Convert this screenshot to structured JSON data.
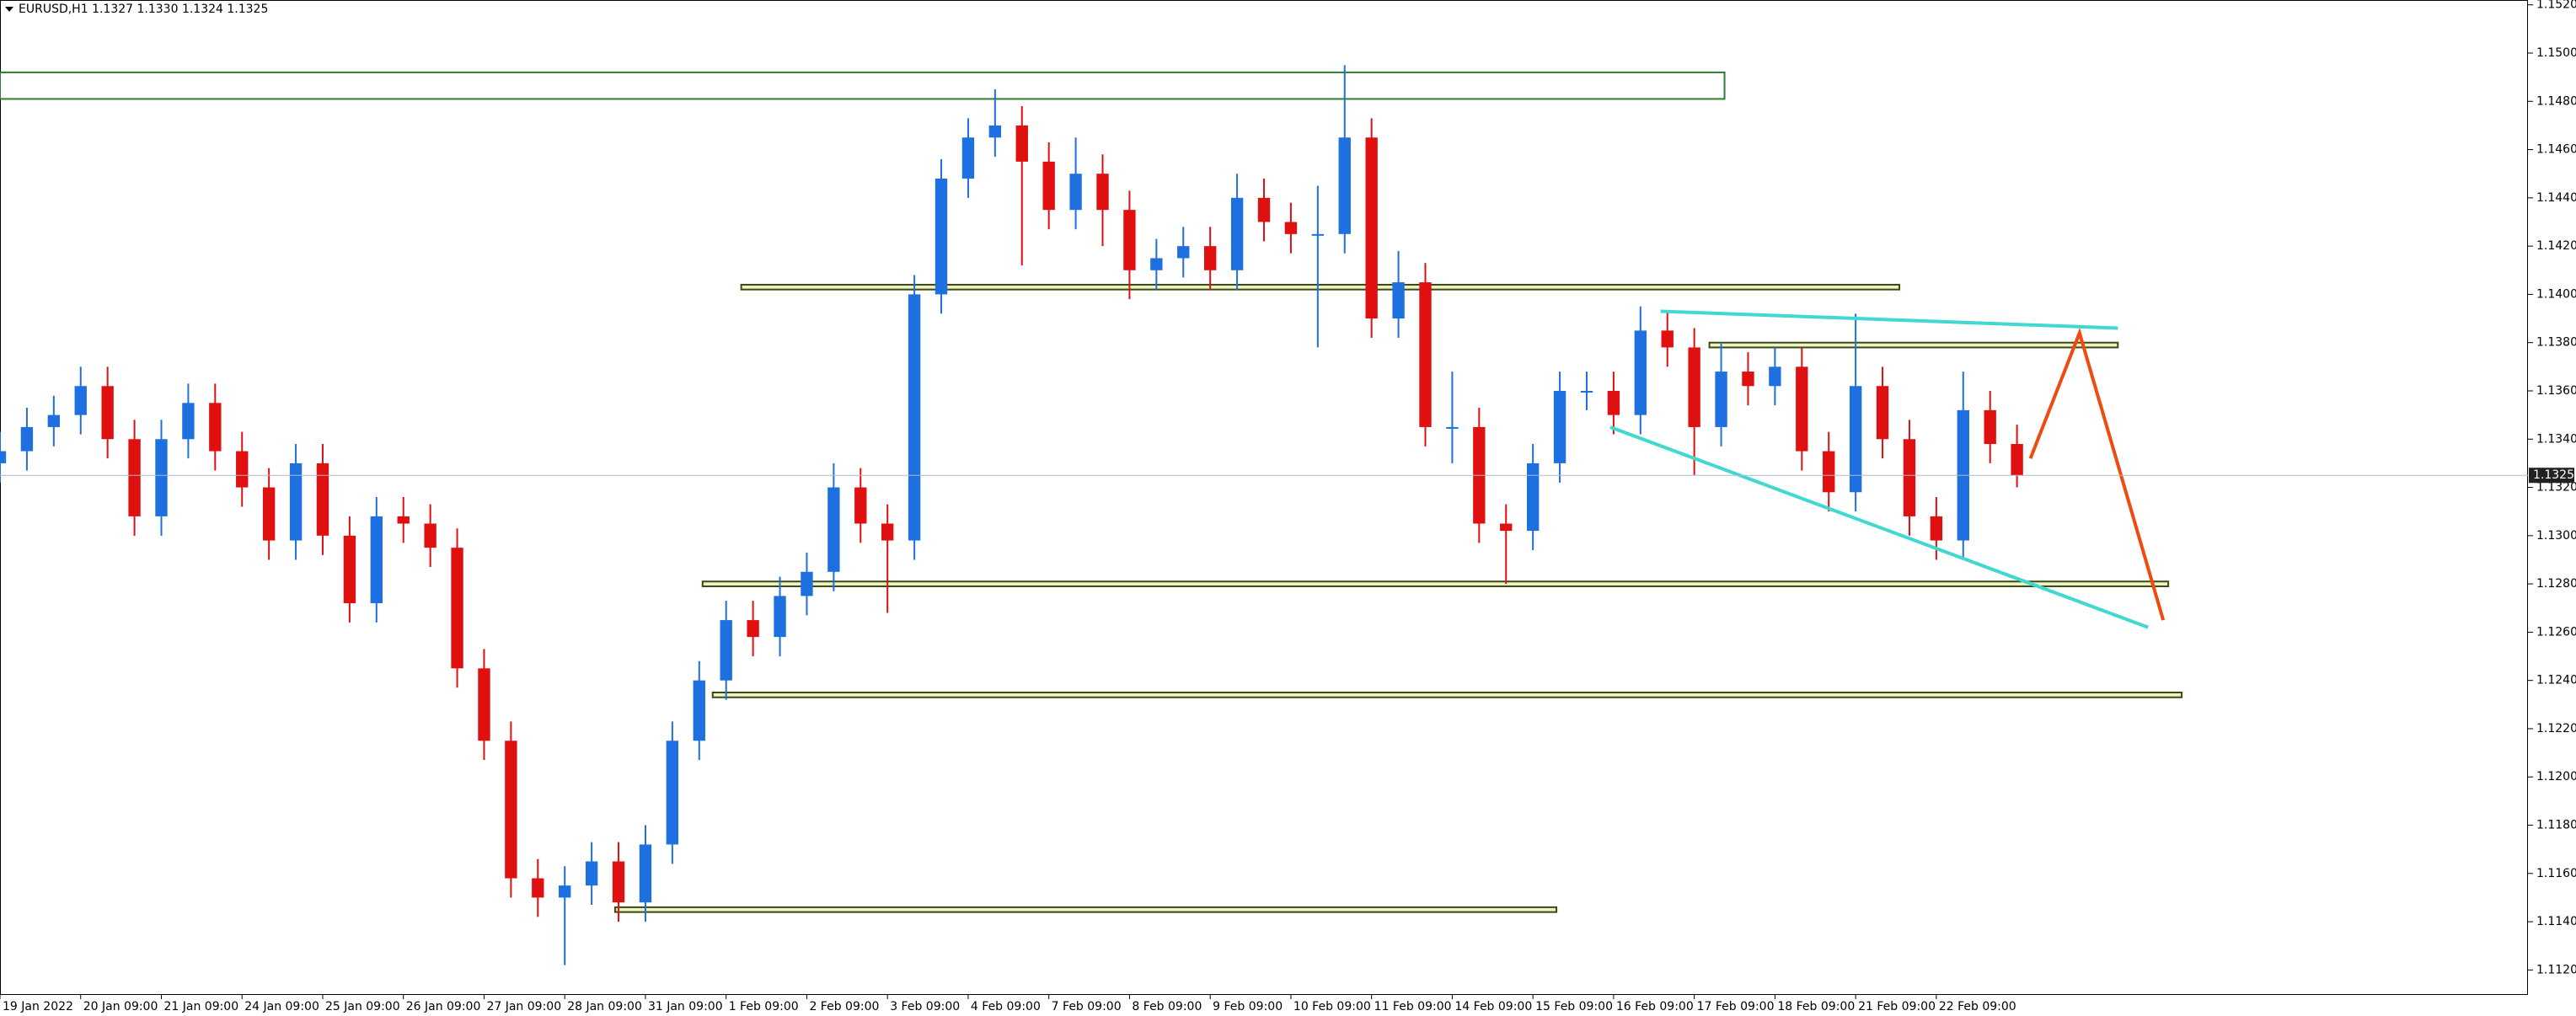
{
  "chart_data": {
    "type": "candlestick",
    "symbol_info": "EURUSD,H1  1.1327 1.1330 1.1324 1.1325",
    "up_color": "#1e6fe0",
    "down_color": "#e01010",
    "xlim": [
      0,
      752
    ],
    "ylim": [
      1.111,
      1.1522
    ],
    "xticks": [
      {
        "value": 0,
        "label": "19 Jan 2022"
      },
      {
        "value": 24,
        "label": "20 Jan 09:00"
      },
      {
        "value": 48,
        "label": "21 Jan 09:00"
      },
      {
        "value": 72,
        "label": "24 Jan 09:00"
      },
      {
        "value": 96,
        "label": "25 Jan 09:00"
      },
      {
        "value": 120,
        "label": "26 Jan 09:00"
      },
      {
        "value": 144,
        "label": "27 Jan 09:00"
      },
      {
        "value": 168,
        "label": "28 Jan 09:00"
      },
      {
        "value": 192,
        "label": "31 Jan 09:00"
      },
      {
        "value": 216,
        "label": "1 Feb 09:00"
      },
      {
        "value": 240,
        "label": "2 Feb 09:00"
      },
      {
        "value": 264,
        "label": "3 Feb 09:00"
      },
      {
        "value": 288,
        "label": "4 Feb 09:00"
      },
      {
        "value": 312,
        "label": "7 Feb 09:00"
      },
      {
        "value": 336,
        "label": "8 Feb 09:00"
      },
      {
        "value": 360,
        "label": "9 Feb 09:00"
      },
      {
        "value": 384,
        "label": "10 Feb 09:00"
      },
      {
        "value": 408,
        "label": "11 Feb 09:00"
      },
      {
        "value": 432,
        "label": "14 Feb 09:00"
      },
      {
        "value": 456,
        "label": "15 Feb 09:00"
      },
      {
        "value": 480,
        "label": "16 Feb 09:00"
      },
      {
        "value": 504,
        "label": "17 Feb 09:00"
      },
      {
        "value": 528,
        "label": "18 Feb 09:00"
      },
      {
        "value": 552,
        "label": "21 Feb 09:00"
      },
      {
        "value": 576,
        "label": "22 Feb 09:00"
      }
    ],
    "yticks": [
      {
        "value": 1.152,
        "label": "1.1520"
      },
      {
        "value": 1.15,
        "label": "1.1500"
      },
      {
        "value": 1.148,
        "label": "1.1480"
      },
      {
        "value": 1.146,
        "label": "1.1460"
      },
      {
        "value": 1.144,
        "label": "1.1440"
      },
      {
        "value": 1.142,
        "label": "1.1420"
      },
      {
        "value": 1.14,
        "label": "1.1400"
      },
      {
        "value": 1.138,
        "label": "1.1380"
      },
      {
        "value": 1.136,
        "label": "1.1360"
      },
      {
        "value": 1.134,
        "label": "1.1340"
      },
      {
        "value": 1.132,
        "label": "1.1320"
      },
      {
        "value": 1.13,
        "label": "1.1300"
      },
      {
        "value": 1.128,
        "label": "1.1280"
      },
      {
        "value": 1.126,
        "label": "1.1260"
      },
      {
        "value": 1.124,
        "label": "1.1240"
      },
      {
        "value": 1.122,
        "label": "1.1220"
      },
      {
        "value": 1.12,
        "label": "1.1200"
      },
      {
        "value": 1.118,
        "label": "1.1180"
      },
      {
        "value": 1.116,
        "label": "1.1160"
      },
      {
        "value": 1.114,
        "label": "1.1140"
      },
      {
        "value": 1.112,
        "label": "1.1120"
      }
    ],
    "last_price": {
      "value": 1.1325,
      "label": "1.1325"
    },
    "x": [
      0,
      8,
      16,
      24,
      32,
      40,
      48,
      56,
      64,
      72,
      80,
      88,
      96,
      104,
      112,
      120,
      128,
      136,
      144,
      152,
      160,
      168,
      176,
      184,
      192,
      200,
      208,
      216,
      224,
      232,
      240,
      248,
      256,
      264,
      272,
      280,
      288,
      296,
      304,
      312,
      320,
      328,
      336,
      344,
      352,
      360,
      368,
      376,
      384,
      392,
      400,
      408,
      416,
      424,
      432,
      440,
      448,
      456,
      464,
      472,
      480,
      488,
      496,
      504,
      512,
      520,
      528,
      536,
      544,
      552,
      560,
      568,
      576,
      584,
      592,
      600
    ],
    "open": [
      1.133,
      1.1335,
      1.1345,
      1.135,
      1.1362,
      1.134,
      1.1308,
      1.134,
      1.1355,
      1.1335,
      1.132,
      1.1298,
      1.133,
      1.13,
      1.1272,
      1.1308,
      1.1305,
      1.1295,
      1.1245,
      1.1215,
      1.1158,
      1.115,
      1.1155,
      1.1165,
      1.1148,
      1.1172,
      1.1215,
      1.124,
      1.1265,
      1.1258,
      1.1275,
      1.1285,
      1.132,
      1.1305,
      1.1298,
      1.14,
      1.1448,
      1.1465,
      1.147,
      1.1455,
      1.1435,
      1.145,
      1.1435,
      1.141,
      1.1415,
      1.142,
      1.141,
      1.144,
      1.143,
      1.1425,
      1.1425,
      1.1465,
      1.139,
      1.1405,
      1.1345,
      1.1345,
      1.1305,
      1.1302,
      1.133,
      1.136,
      1.136,
      1.135,
      1.1385,
      1.1378,
      1.1345,
      1.1368,
      1.1362,
      1.137,
      1.1335,
      1.1318,
      1.1362,
      1.134,
      1.1308,
      1.1298,
      1.1352,
      1.1338
    ],
    "high": [
      1.1343,
      1.1353,
      1.1358,
      1.137,
      1.137,
      1.1348,
      1.1348,
      1.1363,
      1.1363,
      1.1343,
      1.1328,
      1.1338,
      1.1338,
      1.1308,
      1.1316,
      1.1316,
      1.1313,
      1.1303,
      1.1253,
      1.1223,
      1.1166,
      1.1163,
      1.1173,
      1.1173,
      1.118,
      1.1223,
      1.1248,
      1.1273,
      1.1273,
      1.1283,
      1.1293,
      1.133,
      1.1328,
      1.1313,
      1.1408,
      1.1456,
      1.1473,
      1.1485,
      1.1478,
      1.1463,
      1.1465,
      1.1458,
      1.1443,
      1.1423,
      1.1428,
      1.1428,
      1.145,
      1.1448,
      1.1438,
      1.1445,
      1.1495,
      1.1473,
      1.1418,
      1.1413,
      1.1368,
      1.1353,
      1.1313,
      1.1338,
      1.1368,
      1.1368,
      1.1368,
      1.1395,
      1.1393,
      1.1386,
      1.138,
      1.1376,
      1.1378,
      1.1378,
      1.1343,
      1.1392,
      1.137,
      1.1348,
      1.1316,
      1.1368,
      1.136,
      1.1346
    ],
    "low": [
      1.1322,
      1.1327,
      1.1337,
      1.1342,
      1.1332,
      1.13,
      1.13,
      1.1332,
      1.1327,
      1.1312,
      1.129,
      1.129,
      1.1292,
      1.1264,
      1.1264,
      1.1297,
      1.1287,
      1.1237,
      1.1207,
      1.115,
      1.1142,
      1.1122,
      1.1147,
      1.114,
      1.114,
      1.1164,
      1.1207,
      1.1232,
      1.125,
      1.125,
      1.1267,
      1.1277,
      1.1297,
      1.1268,
      1.129,
      1.1392,
      1.144,
      1.1457,
      1.1412,
      1.1427,
      1.1427,
      1.142,
      1.1398,
      1.1402,
      1.1407,
      1.1402,
      1.1402,
      1.1422,
      1.1417,
      1.1378,
      1.1417,
      1.1382,
      1.1382,
      1.1337,
      1.133,
      1.1297,
      1.128,
      1.1294,
      1.1322,
      1.1352,
      1.1342,
      1.1342,
      1.137,
      1.1325,
      1.1337,
      1.1354,
      1.1354,
      1.1327,
      1.131,
      1.131,
      1.1332,
      1.13,
      1.129,
      1.129,
      1.133,
      1.132
    ],
    "close": [
      1.1335,
      1.1345,
      1.135,
      1.1362,
      1.134,
      1.1308,
      1.134,
      1.1355,
      1.1335,
      1.132,
      1.1298,
      1.133,
      1.13,
      1.1272,
      1.1308,
      1.1305,
      1.1295,
      1.1245,
      1.1215,
      1.1158,
      1.115,
      1.1155,
      1.1165,
      1.1148,
      1.1172,
      1.1215,
      1.124,
      1.1265,
      1.1258,
      1.1275,
      1.1285,
      1.132,
      1.1305,
      1.1298,
      1.14,
      1.1448,
      1.1465,
      1.147,
      1.1455,
      1.1435,
      1.145,
      1.1435,
      1.141,
      1.1415,
      1.142,
      1.141,
      1.144,
      1.143,
      1.1425,
      1.1425,
      1.1465,
      1.139,
      1.1405,
      1.1345,
      1.1345,
      1.1305,
      1.1302,
      1.133,
      1.136,
      1.136,
      1.135,
      1.1385,
      1.1378,
      1.1345,
      1.1368,
      1.1362,
      1.137,
      1.1335,
      1.1318,
      1.1362,
      1.134,
      1.1308,
      1.1298,
      1.1352,
      1.1338,
      1.1325
    ],
    "zones": [
      {
        "x": [
          0,
          513
        ],
        "y": [
          1.1481,
          1.1492
        ],
        "color": "#2e7d32",
        "fill": "#ffffff"
      },
      {
        "x": [
          220.5,
          565
        ],
        "y": [
          1.1402,
          1.1404
        ],
        "color": "#3b4a10",
        "fill": "#eef2c8"
      },
      {
        "x": [
          508.5,
          630
        ],
        "y": [
          1.1378,
          1.138
        ],
        "color": "#3b4a10",
        "fill": "#eef2c8"
      },
      {
        "x": [
          209,
          645
        ],
        "y": [
          1.1279,
          1.1281
        ],
        "color": "#3b4a10",
        "fill": "#eef2c8"
      },
      {
        "x": [
          212,
          649
        ],
        "y": [
          1.1233,
          1.1235
        ],
        "color": "#3b4a10",
        "fill": "#eef2c8"
      },
      {
        "x": [
          183,
          463
        ],
        "y": [
          1.1144,
          1.1146
        ],
        "color": "#3b4a10",
        "fill": "#eef2c8"
      }
    ],
    "lines": [
      {
        "x": [
          494,
          630
        ],
        "y": [
          1.1393,
          1.1386
        ],
        "color": "#40d8d0"
      },
      {
        "x": [
          479,
          639
        ],
        "y": [
          1.1345,
          1.1262
        ],
        "color": "#40d8d0"
      },
      {
        "x": [
          604,
          618.6,
          643.5
        ],
        "y": [
          1.1332,
          1.1384,
          1.1265
        ],
        "color": "#f04a10"
      }
    ]
  }
}
